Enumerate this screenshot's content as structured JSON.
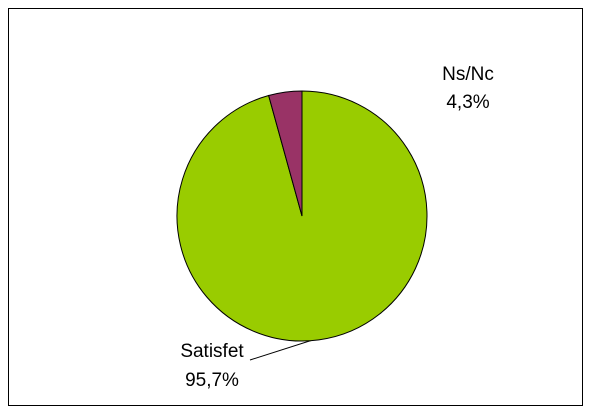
{
  "chart_data": {
    "type": "pie",
    "categories": [
      "Satisfet",
      "Ns/Nc"
    ],
    "values": [
      95.7,
      4.3
    ],
    "value_labels": [
      "95,7%",
      "4,3%"
    ],
    "colors": [
      "#99cc00",
      "#993366"
    ]
  }
}
